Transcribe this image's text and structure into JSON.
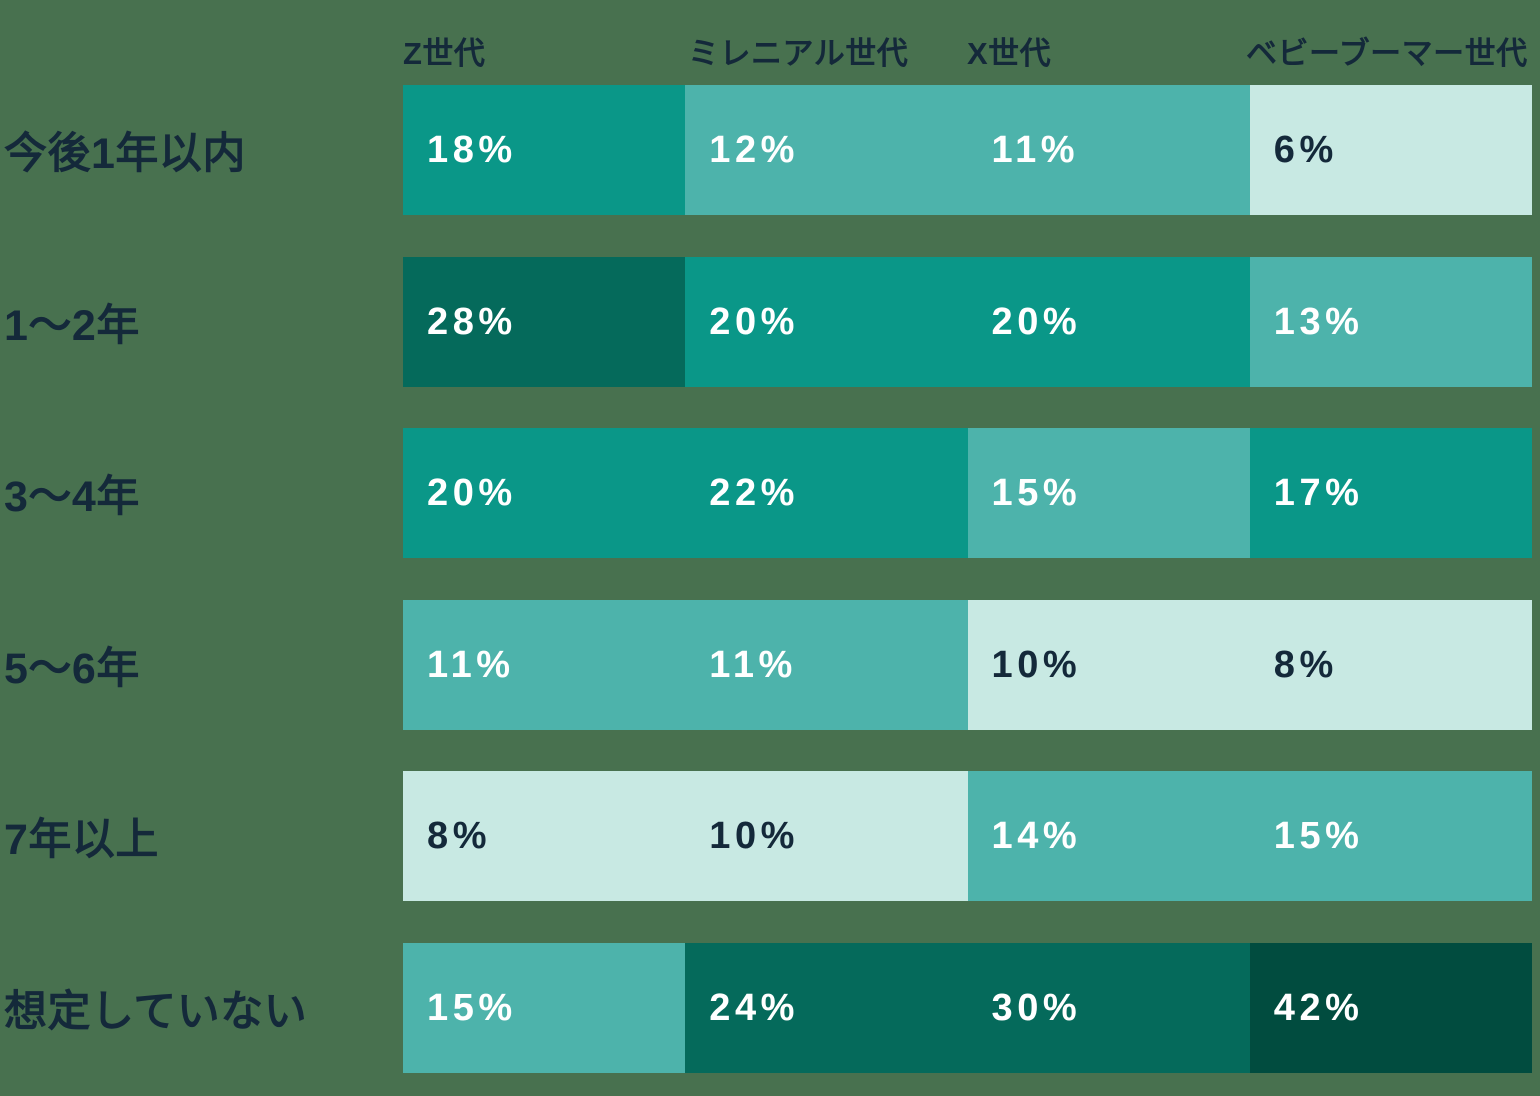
{
  "colors": {
    "background": "#48714F",
    "heading_text": "#14293A",
    "value_text_light": "#FFFFFF"
  },
  "palette": {
    "tone_lightest": "#C8E9E3",
    "tone_light": "#4DB3AB",
    "tone_mid": "#0A9788",
    "tone_dark": "#056A5B",
    "tone_darkest": "#014C3F"
  },
  "chart_data": {
    "type": "heatmap",
    "unit": "%",
    "legend_position": "none",
    "grid": false,
    "columns": [
      "Z世代",
      "ミレニアル世代",
      "X世代",
      "ベビーブーマー世代"
    ],
    "rows": [
      "今後1年以内",
      "1〜2年",
      "3〜4年",
      "5〜6年",
      "7年以上",
      "想定していない"
    ],
    "series": [
      {
        "name": "今後1年以内",
        "values": [
          18,
          12,
          11,
          6
        ]
      },
      {
        "name": "1〜2年",
        "values": [
          28,
          20,
          20,
          13
        ]
      },
      {
        "name": "3〜4年",
        "values": [
          20,
          22,
          15,
          17
        ]
      },
      {
        "name": "5〜6年",
        "values": [
          11,
          11,
          10,
          8
        ]
      },
      {
        "name": "7年以上",
        "values": [
          8,
          10,
          14,
          15
        ]
      },
      {
        "name": "想定していない",
        "values": [
          15,
          24,
          30,
          42
        ]
      }
    ],
    "cells": [
      [
        {
          "label": "18%",
          "value": 18,
          "tone": "tone_mid",
          "text": "light"
        },
        {
          "label": "12%",
          "value": 12,
          "tone": "tone_light",
          "text": "light"
        },
        {
          "label": "11%",
          "value": 11,
          "tone": "tone_light",
          "text": "light"
        },
        {
          "label": "6%",
          "value": 6,
          "tone": "tone_lightest",
          "text": "dark"
        }
      ],
      [
        {
          "label": "28%",
          "value": 28,
          "tone": "tone_dark",
          "text": "light"
        },
        {
          "label": "20%",
          "value": 20,
          "tone": "tone_mid",
          "text": "light"
        },
        {
          "label": "20%",
          "value": 20,
          "tone": "tone_mid",
          "text": "light"
        },
        {
          "label": "13%",
          "value": 13,
          "tone": "tone_light",
          "text": "light"
        }
      ],
      [
        {
          "label": "20%",
          "value": 20,
          "tone": "tone_mid",
          "text": "light"
        },
        {
          "label": "22%",
          "value": 22,
          "tone": "tone_mid",
          "text": "light"
        },
        {
          "label": "15%",
          "value": 15,
          "tone": "tone_light",
          "text": "light"
        },
        {
          "label": "17%",
          "value": 17,
          "tone": "tone_mid",
          "text": "light"
        }
      ],
      [
        {
          "label": "11%",
          "value": 11,
          "tone": "tone_light",
          "text": "light"
        },
        {
          "label": "11%",
          "value": 11,
          "tone": "tone_light",
          "text": "light"
        },
        {
          "label": "10%",
          "value": 10,
          "tone": "tone_lightest",
          "text": "dark"
        },
        {
          "label": "8%",
          "value": 8,
          "tone": "tone_lightest",
          "text": "dark"
        }
      ],
      [
        {
          "label": "8%",
          "value": 8,
          "tone": "tone_lightest",
          "text": "dark"
        },
        {
          "label": "10%",
          "value": 10,
          "tone": "tone_lightest",
          "text": "dark"
        },
        {
          "label": "14%",
          "value": 14,
          "tone": "tone_light",
          "text": "light"
        },
        {
          "label": "15%",
          "value": 15,
          "tone": "tone_light",
          "text": "light"
        }
      ],
      [
        {
          "label": "15%",
          "value": 15,
          "tone": "tone_light",
          "text": "light"
        },
        {
          "label": "24%",
          "value": 24,
          "tone": "tone_dark",
          "text": "light"
        },
        {
          "label": "30%",
          "value": 30,
          "tone": "tone_dark",
          "text": "light"
        },
        {
          "label": "42%",
          "value": 42,
          "tone": "tone_darkest",
          "text": "light"
        }
      ]
    ]
  }
}
